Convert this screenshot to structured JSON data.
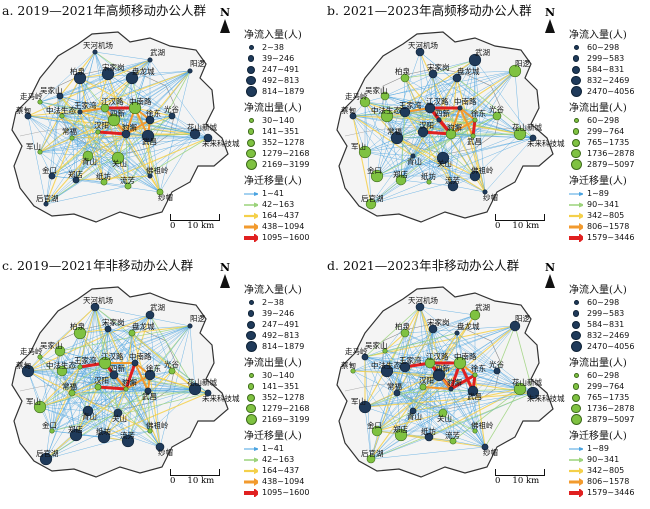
{
  "panels": [
    {
      "title": "a. 2019—2021年高频移动办公人群"
    },
    {
      "title": "b. 2021—2023年高频移动办公人群"
    },
    {
      "title": "c. 2019—2021年非移动办公人群"
    },
    {
      "title": "d. 2021—2023年非移动办公人群"
    }
  ],
  "legend_sets": {
    "2019_2021": {
      "inflow_title": "净流入量(人)",
      "inflow_classes": [
        "2~38",
        "39~246",
        "247~491",
        "492~813",
        "814~1879"
      ],
      "outflow_title": "净流出量(人)",
      "outflow_classes": [
        "30~140",
        "141~351",
        "352~1278",
        "1279~2168",
        "2169~3199"
      ],
      "migration_title": "净迁移量(人)",
      "migration_classes": [
        "1~41",
        "42~163",
        "164~437",
        "438~1094",
        "1095~1600"
      ]
    },
    "2021_2023": {
      "inflow_title": "净流入量(人)",
      "inflow_classes": [
        "60~298",
        "299~583",
        "584~831",
        "832~2469",
        "2470~4056"
      ],
      "outflow_title": "净流出量(人)",
      "outflow_classes": [
        "60~298",
        "299~764",
        "765~1735",
        "1736~2878",
        "2879~5097"
      ],
      "migration_title": "净迁移量(人)",
      "migration_classes": [
        "1~89",
        "90~341",
        "342~805",
        "806~1578",
        "1579~3446"
      ]
    }
  },
  "migration_colors": [
    "#4aa3e0",
    "#9bd27a",
    "#f4d04a",
    "#f29a2e",
    "#e02020"
  ],
  "north": "N",
  "scale": {
    "zero": "0",
    "distance": "10 km"
  },
  "place_labels": [
    "天河机场",
    "武湖",
    "阳逻",
    "柏泉",
    "宋家岗",
    "盘龙城",
    "吴家山",
    "走马岭",
    "蔡甸",
    "中法生态",
    "王家湾",
    "江汉路",
    "中南路",
    "徐东",
    "光谷",
    "花山新城",
    "未来科技城",
    "豹澥",
    "汉阳",
    "常福",
    "军山",
    "金口",
    "郑店",
    "纸坊",
    "流芳",
    "佛祖岭",
    "纱帽",
    "后官湖",
    "四新",
    "武昌",
    "青山",
    "关山"
  ]
}
